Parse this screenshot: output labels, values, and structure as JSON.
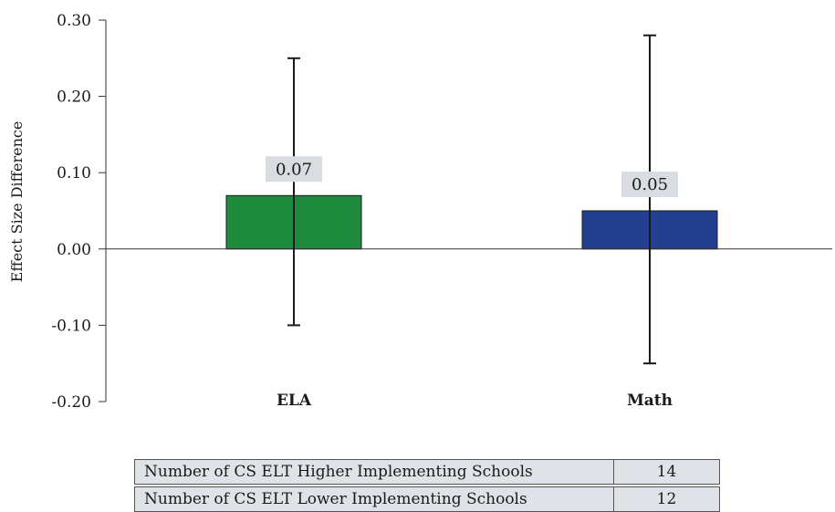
{
  "chart_data": {
    "type": "bar",
    "title": "",
    "xlabel": "",
    "ylabel": "Effect Size Difference",
    "ylim": [
      -0.2,
      0.3
    ],
    "y_ticks": [
      0.3,
      0.2,
      0.1,
      0.0,
      -0.1,
      -0.2
    ],
    "y_tick_labels": [
      "0.30",
      "0.20",
      "0.10",
      "0.00",
      "-0.10",
      "-0.20"
    ],
    "categories": [
      "ELA",
      "Math"
    ],
    "values": [
      0.07,
      0.05
    ],
    "value_labels": [
      "0.07",
      "0.05"
    ],
    "error_bars": [
      {
        "low": -0.1,
        "high": 0.25
      },
      {
        "low": -0.15,
        "high": 0.28
      }
    ],
    "colors": [
      "#1e8a3e",
      "#22408f"
    ],
    "grid": false
  },
  "table": {
    "rows": [
      {
        "label": "Number of CS ELT Higher Implementing Schools",
        "value": "14"
      },
      {
        "label": "Number of CS ELT Lower Implementing Schools",
        "value": "12"
      }
    ]
  }
}
